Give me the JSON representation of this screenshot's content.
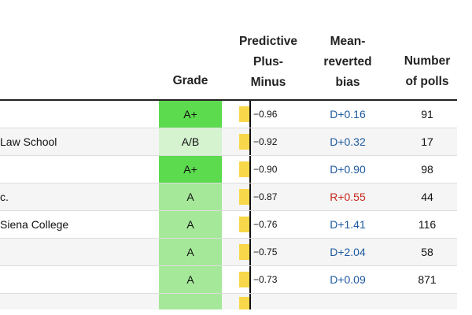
{
  "headers": {
    "grade": "Grade",
    "predictive_plus_minus": "Predictive\nPlus-\nMinus",
    "mean_reverted_bias": "Mean-\nreverted\nbias",
    "number_of_polls": "Number\nof polls"
  },
  "colors": {
    "grade_a_plus": "#5cdb4e",
    "grade_a": "#a6e89a",
    "grade_a_b": "#d5f3cf",
    "plus_minus_bar": "#f8d74a",
    "bias_d": "#1e5aa0",
    "bias_r": "#c8281e",
    "header_rule": "#222222"
  },
  "rows": [
    {
      "pollster": "",
      "grade": "A+",
      "grade_color": "#5cdb4e",
      "plus_minus": "−0.96",
      "bias": "D+0.16",
      "bias_color": "#1e5aa0",
      "polls": "91"
    },
    {
      "pollster": "Law School",
      "grade": "A/B",
      "grade_color": "#d5f3cf",
      "plus_minus": "−0.92",
      "bias": "D+0.32",
      "bias_color": "#1e5aa0",
      "polls": "17"
    },
    {
      "pollster": "",
      "grade": "A+",
      "grade_color": "#5cdb4e",
      "plus_minus": "−0.90",
      "bias": "D+0.90",
      "bias_color": "#1e5aa0",
      "polls": "98"
    },
    {
      "pollster": "c.",
      "grade": "A",
      "grade_color": "#a6e89a",
      "plus_minus": "−0.87",
      "bias": "R+0.55",
      "bias_color": "#c8281e",
      "polls": "44"
    },
    {
      "pollster": "Siena College",
      "grade": "A",
      "grade_color": "#a6e89a",
      "plus_minus": "−0.76",
      "bias": "D+1.41",
      "bias_color": "#1e5aa0",
      "polls": "116"
    },
    {
      "pollster": "",
      "grade": "A",
      "grade_color": "#a6e89a",
      "plus_minus": "−0.75",
      "bias": "D+2.04",
      "bias_color": "#1e5aa0",
      "polls": "58"
    },
    {
      "pollster": "",
      "grade": "A",
      "grade_color": "#a6e89a",
      "plus_minus": "−0.73",
      "bias": "D+0.09",
      "bias_color": "#1e5aa0",
      "polls": "871"
    }
  ],
  "partial_row": {
    "grade_color": "#a6e89a"
  }
}
